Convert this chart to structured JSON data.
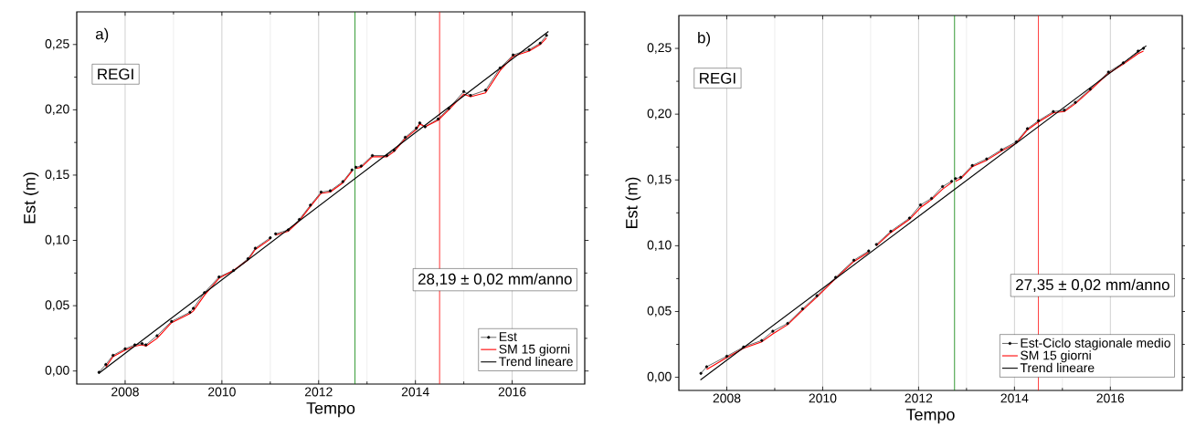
{
  "chart_data": [
    {
      "type": "line",
      "xlabel": "Tempo",
      "ylabel": "Est (m)",
      "xlim": [
        2007,
        2017.5
      ],
      "ylim": [
        -0.01,
        0.275
      ],
      "xticks": [
        2008,
        2010,
        2012,
        2014,
        2016
      ],
      "yticks": [
        {
          "value": 0,
          "label": "0,00"
        },
        {
          "value": 0.05,
          "label": "0,05"
        },
        {
          "value": 0.1,
          "label": "0,10"
        },
        {
          "value": 0.15,
          "label": "0,15"
        },
        {
          "value": 0.2,
          "label": "0,20"
        },
        {
          "value": 0.25,
          "label": "0,25"
        }
      ],
      "grid": "x",
      "legend": "bottom right",
      "annotations": [
        "a)",
        "REGI",
        "28,19 ± 0,02 mm/anno"
      ],
      "ref_lines": [
        {
          "axis": "x",
          "value": 2012.75,
          "color": "#008000"
        },
        {
          "axis": "x",
          "value": 2014.5,
          "color": "#ff0000"
        }
      ],
      "series": [
        {
          "name": "Est",
          "color": "#000000",
          "marker": "circle",
          "x": [
            2007.46,
            2007.6,
            2007.75,
            2008.0,
            2008.2,
            2008.35,
            2008.43,
            2008.66,
            2008.96,
            2009.34,
            2009.41,
            2009.64,
            2009.94,
            2010.24,
            2010.54,
            2010.69,
            2011.0,
            2011.05,
            2011.11,
            2011.37,
            2011.6,
            2011.83,
            2012.05,
            2012.24,
            2012.5,
            2012.69,
            2012.73,
            2012.77,
            2012.88,
            2013.11,
            2013.41,
            2013.56,
            2013.79,
            2014.02,
            2014.09,
            2014.2,
            2014.47,
            2014.69,
            2015.0,
            2015.14,
            2015.45,
            2015.75,
            2016.02,
            2016.35,
            2016.58,
            2016.71
          ],
          "values": [
            -0.001,
            0.005,
            0.012,
            0.017,
            0.02,
            0.021,
            0.02,
            0.027,
            0.038,
            0.045,
            0.048,
            0.06,
            0.072,
            0.077,
            0.086,
            0.094,
            0.102,
            null,
            0.105,
            0.108,
            0.116,
            0.127,
            0.137,
            0.138,
            0.145,
            0.154,
            null,
            0.156,
            0.157,
            0.165,
            0.165,
            0.169,
            0.179,
            0.186,
            0.19,
            0.187,
            0.193,
            0.201,
            0.214,
            0.211,
            0.215,
            0.232,
            0.242,
            0.246,
            0.251,
            0.257
          ]
        },
        {
          "name": "SM 15 giorni",
          "color": "#ff0000",
          "marker": "none",
          "x": [
            2007.6,
            2007.75,
            2008.0,
            2008.2,
            2008.35,
            2008.43,
            2008.66,
            2008.96,
            2009.34,
            2009.41,
            2009.64,
            2009.94,
            2010.24,
            2010.54,
            2010.69,
            2011.0,
            2011.05,
            2011.11,
            2011.37,
            2011.6,
            2011.83,
            2012.05,
            2012.24,
            2012.5,
            2012.69,
            2012.73,
            2012.77,
            2012.88,
            2013.11,
            2013.41,
            2013.56,
            2013.79,
            2014.02,
            2014.09,
            2014.2,
            2014.47,
            2014.69,
            2015.0,
            2015.14,
            2015.45,
            2015.75,
            2016.02,
            2016.35,
            2016.58,
            2016.71
          ],
          "values": [
            0.003,
            0.011,
            0.016,
            0.019,
            0.02,
            0.019,
            0.025,
            0.037,
            0.044,
            0.046,
            0.058,
            0.071,
            0.077,
            0.085,
            0.093,
            0.101,
            null,
            0.104,
            0.107,
            0.115,
            0.126,
            0.136,
            0.137,
            0.144,
            0.153,
            null,
            0.155,
            0.156,
            0.164,
            0.164,
            0.168,
            0.178,
            0.185,
            0.189,
            0.187,
            0.192,
            0.2,
            0.212,
            0.21,
            0.213,
            0.23,
            0.241,
            0.245,
            0.25,
            0.255
          ]
        },
        {
          "name": "Trend lineare",
          "color": "#000000",
          "marker": "none",
          "x": [
            2007.45,
            2016.75
          ],
          "values": [
            -0.002,
            0.26
          ]
        }
      ]
    },
    {
      "type": "line",
      "xlabel": "Tempo",
      "ylabel": "Est (m)",
      "xlim": [
        2007,
        2017.5
      ],
      "ylim": [
        -0.01,
        0.275
      ],
      "xticks": [
        2008,
        2010,
        2012,
        2014,
        2016
      ],
      "yticks": [
        {
          "value": 0,
          "label": "0,00"
        },
        {
          "value": 0.05,
          "label": "0,05"
        },
        {
          "value": 0.1,
          "label": "0,10"
        },
        {
          "value": 0.15,
          "label": "0,15"
        },
        {
          "value": 0.2,
          "label": "0,20"
        },
        {
          "value": 0.25,
          "label": "0,25"
        }
      ],
      "grid": "x",
      "legend": "bottom right",
      "annotations": [
        "b)",
        "REGI",
        "27,35 ± 0,02 mm/anno"
      ],
      "ref_lines": [
        {
          "axis": "x",
          "value": 2012.75,
          "color": "#008000"
        },
        {
          "axis": "x",
          "value": 2014.5,
          "color": "#ff0000"
        }
      ],
      "series": [
        {
          "name": "Est-Ciclo stagionale medio",
          "color": "#000000",
          "marker": "circle",
          "x": [
            2007.46,
            2007.58,
            2008.0,
            2008.35,
            2008.73,
            2008.96,
            2009.27,
            2009.58,
            2009.88,
            2010.27,
            2010.65,
            2010.96,
            2011.04,
            2011.12,
            2011.42,
            2011.81,
            2012.04,
            2012.27,
            2012.5,
            2012.69,
            2012.73,
            2012.77,
            2012.88,
            2013.12,
            2013.42,
            2013.73,
            2014.04,
            2014.27,
            2014.5,
            2014.81,
            2015.04,
            2015.27,
            2015.58,
            2015.96,
            2016.27,
            2016.58,
            2016.69
          ],
          "values": [
            0.003,
            0.008,
            0.016,
            0.023,
            0.028,
            0.035,
            0.041,
            0.052,
            0.062,
            0.076,
            0.089,
            0.096,
            null,
            0.101,
            0.111,
            0.121,
            0.131,
            0.136,
            0.145,
            0.149,
            null,
            0.151,
            0.152,
            0.161,
            0.166,
            0.173,
            0.179,
            0.189,
            0.195,
            0.202,
            0.203,
            0.209,
            0.219,
            0.232,
            0.239,
            0.248,
            0.25
          ]
        },
        {
          "name": "SM 15 giorni",
          "color": "#ff0000",
          "marker": "none",
          "x": [
            2007.58,
            2008.0,
            2008.35,
            2008.73,
            2008.96,
            2009.27,
            2009.58,
            2009.88,
            2010.27,
            2010.65,
            2010.96,
            2011.04,
            2011.12,
            2011.42,
            2011.81,
            2012.04,
            2012.27,
            2012.5,
            2012.69,
            2012.73,
            2012.77,
            2012.88,
            2013.12,
            2013.42,
            2013.73,
            2014.04,
            2014.27,
            2014.5,
            2014.81,
            2015.04,
            2015.27,
            2015.58,
            2015.96,
            2016.27,
            2016.58,
            2016.69
          ],
          "values": [
            0.006,
            0.015,
            0.022,
            0.027,
            0.033,
            0.04,
            0.051,
            0.061,
            0.075,
            0.088,
            0.095,
            null,
            0.1,
            0.11,
            0.12,
            0.129,
            0.135,
            0.143,
            0.148,
            null,
            0.149,
            0.151,
            0.16,
            0.165,
            0.172,
            0.178,
            0.188,
            0.194,
            0.201,
            0.202,
            0.208,
            0.218,
            0.231,
            0.238,
            0.246,
            0.248
          ]
        },
        {
          "name": "Trend lineare",
          "color": "#000000",
          "marker": "none",
          "x": [
            2007.45,
            2016.75
          ],
          "values": [
            -0.002,
            0.252
          ]
        }
      ]
    }
  ]
}
